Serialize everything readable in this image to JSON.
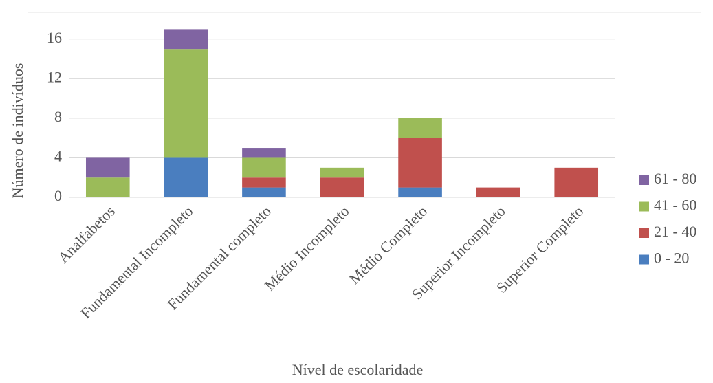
{
  "chart_data": {
    "type": "stacked_bar",
    "x_label": "Nível de escolaridade",
    "y_label": "Número de indivíduos",
    "categories": [
      "Analfabetos",
      "Fundamental Incompleto",
      "Fundamental completo",
      "Médio Incompleto",
      "Médio Completo",
      "Superior Incompleto",
      "Superior Completo"
    ],
    "series": [
      {
        "name": "0 - 20",
        "color": "#4a7ebf",
        "values": [
          0,
          4,
          1,
          0,
          1,
          0,
          0
        ]
      },
      {
        "name": "21 - 40",
        "color": "#c0504d",
        "values": [
          0,
          0,
          1,
          2,
          5,
          1,
          3
        ]
      },
      {
        "name": "41 - 60",
        "color": "#9bbb59",
        "values": [
          2,
          11,
          2,
          1,
          2,
          0,
          0
        ]
      },
      {
        "name": "61 - 80",
        "color": "#8064a2",
        "values": [
          2,
          2,
          1,
          0,
          0,
          0,
          0
        ]
      }
    ],
    "ylim": [
      0,
      18
    ],
    "yticks": [
      0,
      4,
      8,
      12,
      16
    ],
    "grid": true,
    "legend": "right"
  }
}
